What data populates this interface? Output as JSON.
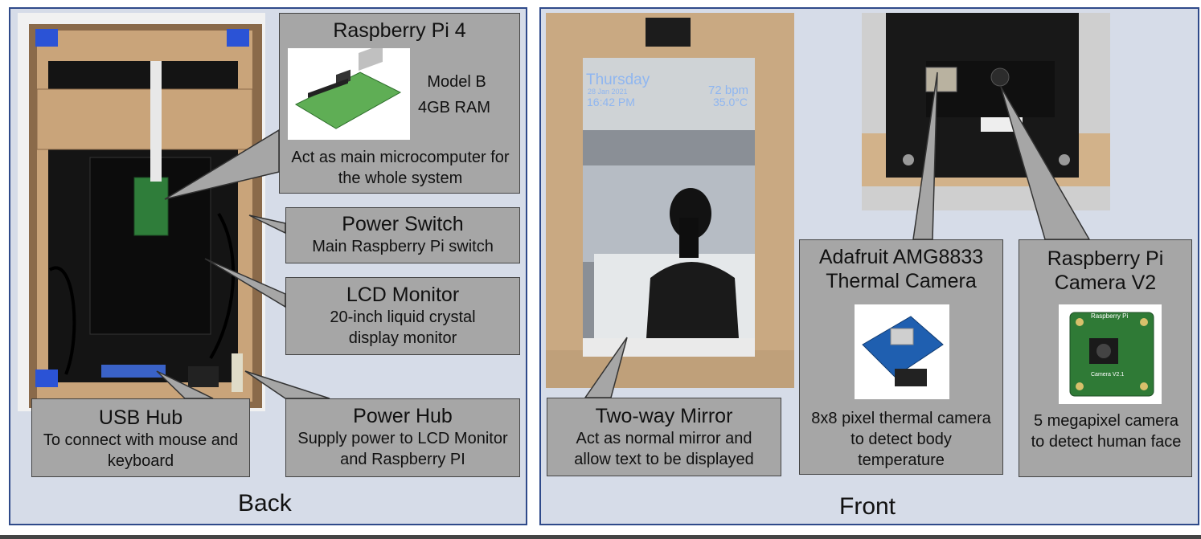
{
  "back": {
    "caption": "Back",
    "raspberry_pi": {
      "title": "Raspberry Pi 4",
      "model": "Model B",
      "ram": "4GB RAM",
      "desc": "Act as main microcomputer for the whole system"
    },
    "power_switch": {
      "title": "Power Switch",
      "desc": "Main Raspberry Pi switch"
    },
    "lcd_monitor": {
      "title": "LCD Monitor",
      "desc": "20-inch liquid crystal display monitor"
    },
    "usb_hub": {
      "title": "USB Hub",
      "desc": "To connect with mouse and keyboard"
    },
    "power_hub": {
      "title": "Power Hub",
      "desc": "Supply power to LCD Monitor and Raspberry PI"
    }
  },
  "front": {
    "caption": "Front",
    "mirror_display": {
      "day": "Thursday",
      "date": "28 Jan 2021",
      "time": "16:42 PM",
      "bpm": "72 bpm",
      "temp": "35.0°C"
    },
    "two_way_mirror": {
      "title": "Two-way Mirror",
      "desc": "Act as normal mirror and allow text to be displayed"
    },
    "thermal_camera": {
      "title": "Adafruit AMG8833 Thermal Camera",
      "desc": "8x8 pixel thermal camera to detect body temperature"
    },
    "pi_camera": {
      "title": "Raspberry Pi Camera V2",
      "board_label": "Raspberry Pi",
      "board_sub": "Camera V2.1",
      "desc": "5 megapixel camera to detect human face"
    }
  },
  "colors": {
    "panel_bg": "#d6dce8",
    "panel_border": "#2f4a8a",
    "box_bg": "#a6a6a6",
    "mirror_text": "#8fb6f0"
  }
}
